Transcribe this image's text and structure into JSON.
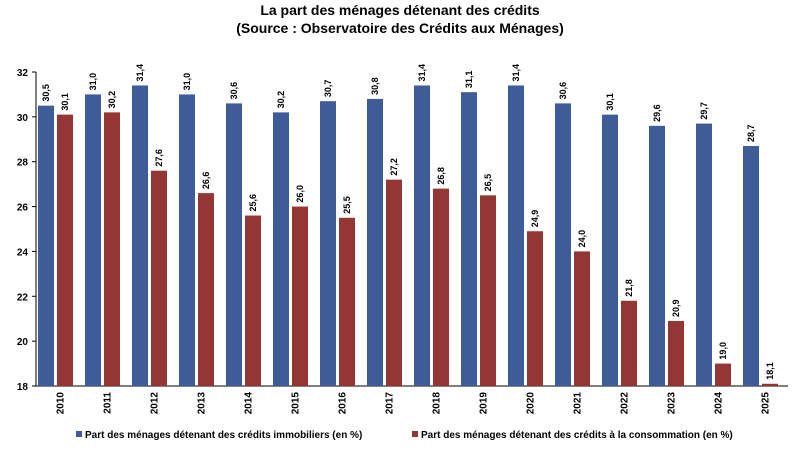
{
  "chart_data": {
    "type": "bar",
    "title": "La part des ménages détenant des crédits",
    "subtitle": "(Source : Observatoire des Crédits aux Ménages)",
    "categories": [
      "2010",
      "2011",
      "2012",
      "2013",
      "2014",
      "2015",
      "2016",
      "2017",
      "2018",
      "2019",
      "2020",
      "2021",
      "2022",
      "2023",
      "2024",
      "2025"
    ],
    "series": [
      {
        "name": "Part des ménages détenant des crédits immobiliers (en %)",
        "color": "#3e5d98",
        "values": [
          30.5,
          31.0,
          31.4,
          31.0,
          30.6,
          30.2,
          30.7,
          30.8,
          31.4,
          31.1,
          31.4,
          30.6,
          30.1,
          29.6,
          29.7,
          28.7
        ],
        "value_labels": [
          "30,5",
          "31,0",
          "31,4",
          "31,0",
          "30,6",
          "30,2",
          "30,7",
          "30,8",
          "31,4",
          "31,1",
          "31,4",
          "30,6",
          "30,1",
          "29,6",
          "29,7",
          "28,7"
        ]
      },
      {
        "name": "Part des ménages détenant des crédits à la consommation (en %)",
        "color": "#943634",
        "values": [
          30.1,
          30.2,
          27.6,
          26.6,
          25.6,
          26.0,
          25.5,
          27.2,
          26.8,
          26.5,
          24.9,
          24.0,
          21.8,
          20.9,
          19.0,
          18.1
        ],
        "value_labels": [
          "30,1",
          "30,2",
          "27,6",
          "26,6",
          "25,6",
          "26,0",
          "25,5",
          "27,2",
          "26,8",
          "26,5",
          "24,9",
          "24,0",
          "21,8",
          "20,9",
          "19,0",
          "18,1"
        ]
      }
    ],
    "ylim": [
      18,
      32
    ],
    "yticks": [
      18,
      20,
      22,
      24,
      26,
      28,
      30,
      32
    ],
    "grid": false,
    "legend": "bottom"
  }
}
